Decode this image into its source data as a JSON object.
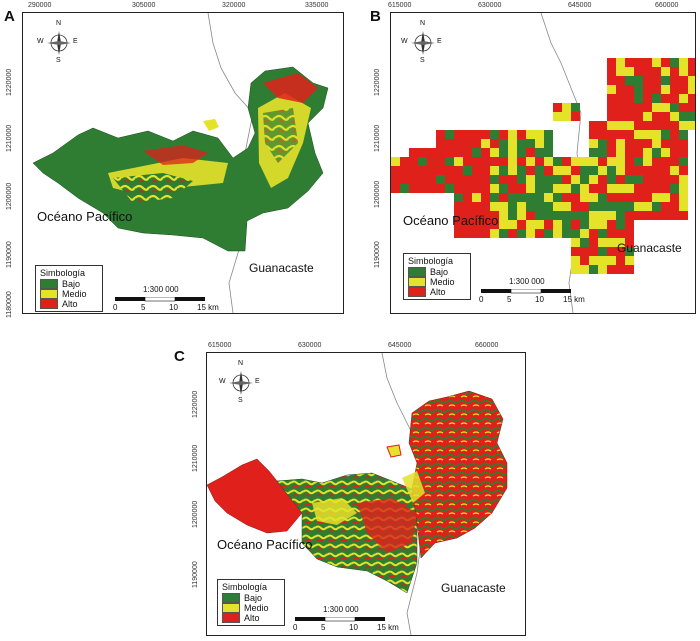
{
  "panels": [
    {
      "label": "A",
      "x_ticks": [
        "290000",
        "305000",
        "320000",
        "335000"
      ],
      "y_ticks": [
        "1220000",
        "1210000",
        "1200000",
        "1190000",
        "1180000"
      ],
      "ocean": "Océano Pacífico",
      "province": "Guanacaste",
      "legend": {
        "title": "Simbología",
        "items": [
          "Bajo",
          "Medio",
          "Alto"
        ]
      },
      "scale": {
        "label": "1:300 000",
        "ticks": [
          "0",
          "5",
          "10",
          "15 km"
        ]
      }
    },
    {
      "label": "B",
      "x_ticks": [
        "615000",
        "630000",
        "645000",
        "660000"
      ],
      "y_ticks": [
        "1220000",
        "1210000",
        "1200000",
        "1190000"
      ],
      "ocean": "Océano Pacífico",
      "province": "Guanacaste",
      "legend": {
        "title": "Simbología",
        "items": [
          "Bajo",
          "Medio",
          "Alto"
        ]
      },
      "scale": {
        "label": "1:300 000",
        "ticks": [
          "0",
          "5",
          "10",
          "15 km"
        ]
      }
    },
    {
      "label": "C",
      "x_ticks": [
        "615000",
        "630000",
        "645000",
        "660000"
      ],
      "y_ticks": [
        "1220000",
        "1210000",
        "1200000",
        "1190000"
      ],
      "ocean": "Océano Pacífico",
      "province": "Guanacaste",
      "legend": {
        "title": "Simbología",
        "items": [
          "Bajo",
          "Medio",
          "Alto"
        ]
      },
      "scale": {
        "label": "1:300 000",
        "ticks": [
          "0",
          "5",
          "10",
          "15 km"
        ]
      }
    }
  ],
  "compass": {
    "n": "N",
    "s": "S",
    "e": "E",
    "w": "W"
  },
  "colors": {
    "bajo": "#2e7d32",
    "medio": "#e5e22a",
    "alto": "#e0201b"
  }
}
